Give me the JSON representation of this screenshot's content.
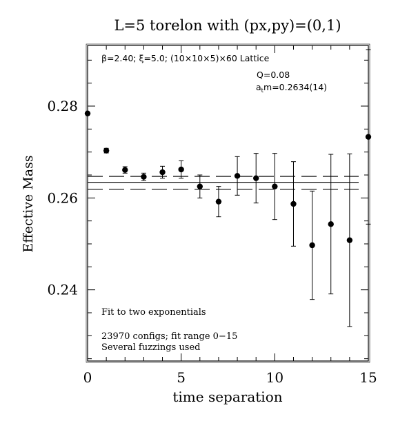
{
  "chart_data": {
    "type": "scatter",
    "title": "L=5 torelon with (px,py)=(0,1)",
    "xlabel": "time separation",
    "ylabel": "Effective Mass",
    "xlim": [
      0,
      15
    ],
    "ylim": [
      0.2245,
      0.2932
    ],
    "x_ticks": [
      0,
      5,
      10,
      15
    ],
    "x_tick_labels": [
      "0",
      "5",
      "10",
      "15"
    ],
    "y_ticks": [
      0.24,
      0.26,
      0.28
    ],
    "y_tick_labels": [
      "0.24",
      "0.26",
      "0.28"
    ],
    "grid": false,
    "annotations": {
      "lattice": "β=2.40; ξ=5.0; (10×10×5)×60 Lattice",
      "q": "Q=0.08",
      "mass_prefix": "a",
      "mass_sub": "t",
      "mass_suffix": "m=0.2634(14)",
      "fit": "Fit to two exponentials",
      "configs": "23970 configs; fit range 0−15",
      "fuzzings": "Several fuzzings used"
    },
    "fit": {
      "central": 0.2634,
      "upper": 0.2647,
      "lower": 0.2619,
      "x_range": [
        0,
        15
      ]
    },
    "series": [
      {
        "points": [
          {
            "x": 0,
            "y": 0.2784,
            "err": 0.0
          },
          {
            "x": 1,
            "y": 0.2703,
            "err": 0.0005
          },
          {
            "x": 2,
            "y": 0.2661,
            "err": 0.0007
          },
          {
            "x": 3,
            "y": 0.2646,
            "err": 0.0008
          },
          {
            "x": 4,
            "y": 0.2656,
            "err": 0.0013
          },
          {
            "x": 5,
            "y": 0.2662,
            "err": 0.0019
          },
          {
            "x": 6,
            "y": 0.2625,
            "err": 0.0025
          },
          {
            "x": 7,
            "y": 0.2592,
            "err": 0.0033
          },
          {
            "x": 8,
            "y": 0.2648,
            "err": 0.0042
          },
          {
            "x": 9,
            "y": 0.2643,
            "err": 0.0054
          },
          {
            "x": 10,
            "y": 0.2625,
            "err": 0.0072
          },
          {
            "x": 11,
            "y": 0.2587,
            "err": 0.0092
          },
          {
            "x": 12,
            "y": 0.2497,
            "err": 0.0118
          },
          {
            "x": 13,
            "y": 0.2543,
            "err": 0.0152
          },
          {
            "x": 14,
            "y": 0.2508,
            "err": 0.0188
          },
          {
            "x": 15,
            "y": 0.2733,
            "err": 0.019
          }
        ]
      }
    ]
  }
}
